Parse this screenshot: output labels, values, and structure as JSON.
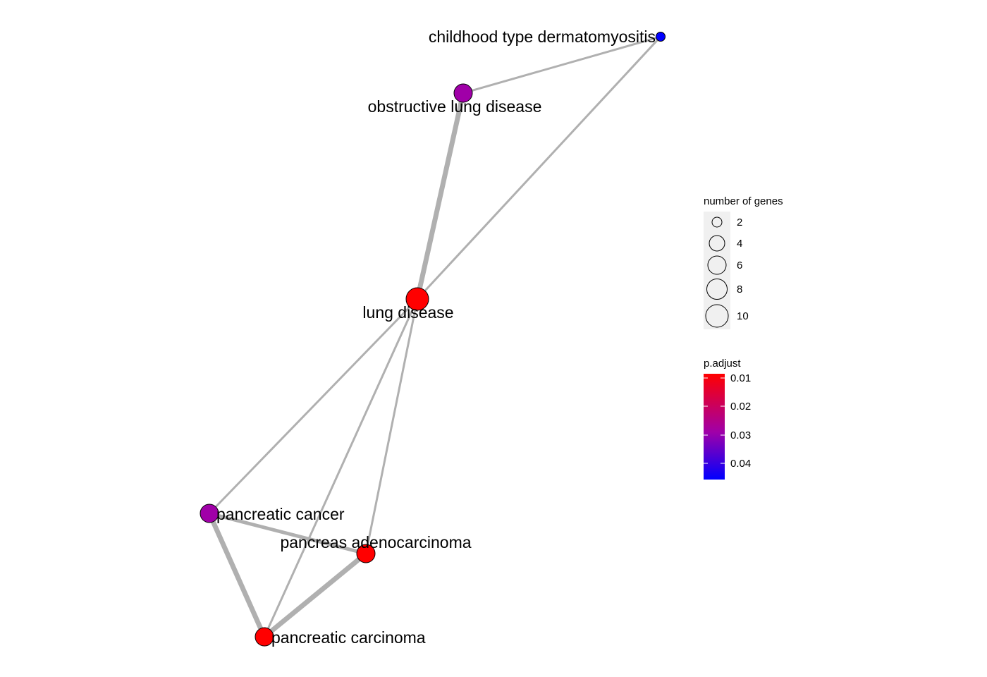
{
  "network": {
    "nodes": [
      {
        "id": "childhood",
        "label": "childhood type dermatomyositis",
        "genes": 1,
        "p_adjust": 0.045,
        "color": "#0000FF"
      },
      {
        "id": "obstructive",
        "label": "obstructive lung disease",
        "genes": 5,
        "p_adjust": 0.03,
        "color": "#A000A8"
      },
      {
        "id": "lung",
        "label": "lung disease",
        "genes": 10,
        "p_adjust": 0.005,
        "color": "#FF0000"
      },
      {
        "id": "pcancer",
        "label": "pancreatic cancer",
        "genes": 6,
        "p_adjust": 0.03,
        "color": "#A000A8"
      },
      {
        "id": "padeno",
        "label": "pancreas adenocarcinoma",
        "genes": 6,
        "p_adjust": 0.008,
        "color": "#FF0000"
      },
      {
        "id": "pcarcinoma",
        "label": "pancreatic carcinoma",
        "genes": 6,
        "p_adjust": 0.007,
        "color": "#FF0000"
      }
    ],
    "edges": [
      {
        "source": "childhood",
        "target": "obstructive",
        "weight": 1
      },
      {
        "source": "childhood",
        "target": "lung",
        "weight": 1
      },
      {
        "source": "obstructive",
        "target": "lung",
        "weight": 3
      },
      {
        "source": "lung",
        "target": "pcancer",
        "weight": 1
      },
      {
        "source": "lung",
        "target": "padeno",
        "weight": 1
      },
      {
        "source": "lung",
        "target": "pcarcinoma",
        "weight": 1
      },
      {
        "source": "pcancer",
        "target": "padeno",
        "weight": 2
      },
      {
        "source": "pcancer",
        "target": "pcarcinoma",
        "weight": 3
      },
      {
        "source": "padeno",
        "target": "pcarcinoma",
        "weight": 3
      }
    ],
    "edge_color": "#B0B0B0"
  },
  "legend_size": {
    "title": "number of genes",
    "items": [
      {
        "label": "2",
        "value": 2
      },
      {
        "label": "4",
        "value": 4
      },
      {
        "label": "6",
        "value": 6
      },
      {
        "label": "8",
        "value": 8
      },
      {
        "label": "10",
        "value": 10
      }
    ]
  },
  "legend_color": {
    "title": "p.adjust",
    "ticks": [
      "0.01",
      "0.02",
      "0.03",
      "0.04"
    ],
    "low_color": "#FF0000",
    "mid_color": "#A000A8",
    "high_color": "#0000FF"
  }
}
